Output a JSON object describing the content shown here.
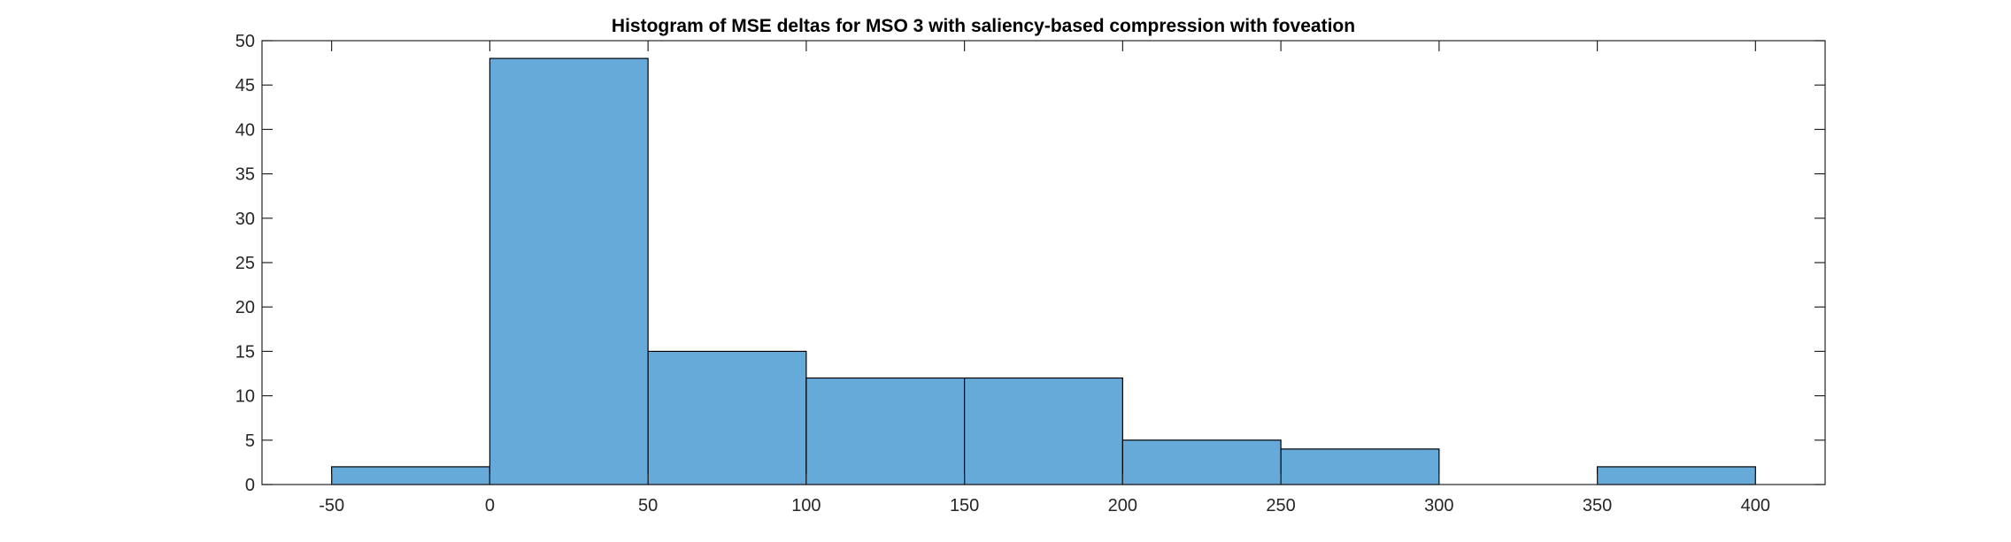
{
  "chart_data": {
    "type": "bar",
    "title": "Histogram of MSE deltas for MSO 3 with saliency-based compression with foveation",
    "xlabel": "",
    "ylabel": "",
    "bin_edges": [
      -50,
      0,
      50,
      100,
      150,
      200,
      250,
      300,
      350,
      400
    ],
    "counts": [
      2,
      48,
      15,
      12,
      12,
      5,
      4,
      0,
      2
    ],
    "xlim": [
      -72,
      422
    ],
    "ylim": [
      0,
      50
    ],
    "xticks": [
      -50,
      0,
      50,
      100,
      150,
      200,
      250,
      300,
      350,
      400
    ],
    "yticks": [
      0,
      5,
      10,
      15,
      20,
      25,
      30,
      35,
      40,
      45,
      50
    ],
    "grid": false,
    "legend": "none",
    "colors": {
      "bar_fill": "#66AADA",
      "bar_edge": "#000000",
      "axis": "#262626",
      "background": "#FFFFFF"
    }
  }
}
